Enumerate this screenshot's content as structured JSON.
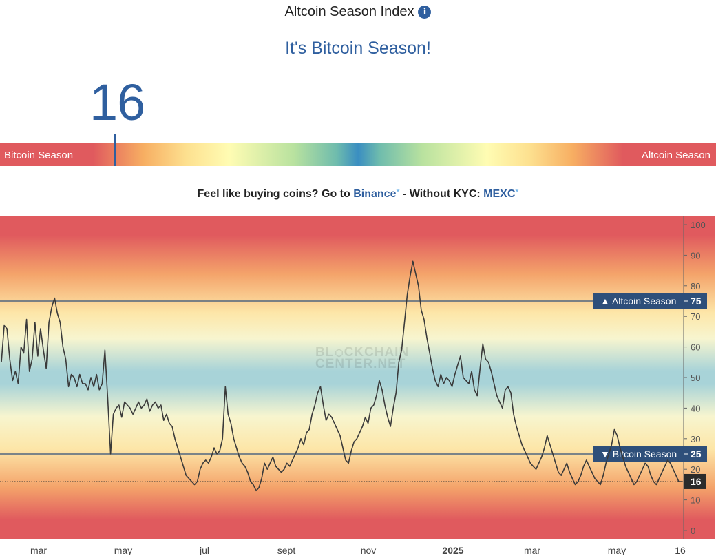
{
  "header": {
    "title": "Altcoin Season Index",
    "info_icon": "info-icon"
  },
  "status": "It's Bitcoin Season!",
  "index_value": "16",
  "gauge": {
    "left_label": "Bitcoin Season",
    "right_label": "Altcoin Season",
    "value": 16
  },
  "promo": {
    "text1": "Feel like buying coins? Go to ",
    "link1": "Binance",
    "star": "*",
    "text2": " - Without KYC: ",
    "link2": "MEXC"
  },
  "chart_data": {
    "type": "line",
    "watermark": [
      "BL",
      "CKCHAIN",
      "CENTER.NET"
    ],
    "ylim": [
      0,
      102
    ],
    "yticks": [
      0,
      10,
      20,
      30,
      40,
      50,
      60,
      70,
      80,
      90,
      100
    ],
    "xtick_labels": [
      "mar",
      "may",
      "jul",
      "sept",
      "nov",
      "2025",
      "mar",
      "may",
      "16"
    ],
    "thresholds": [
      {
        "value": 75,
        "label": "▲ Altcoin Season",
        "value_label": "75"
      },
      {
        "value": 25,
        "label": "▼ Bitcoin Season",
        "value_label": "25"
      }
    ],
    "current": {
      "value": 16,
      "label": "16"
    },
    "values": [
      55,
      67,
      66,
      56,
      49,
      52,
      48,
      60,
      58,
      69,
      52,
      56,
      68,
      57,
      66,
      59,
      53,
      68,
      73,
      76,
      71,
      68,
      60,
      56,
      47,
      51,
      50,
      47,
      51,
      48,
      48,
      46,
      50,
      47,
      51,
      46,
      48,
      59,
      43,
      25,
      38,
      40,
      41,
      37,
      42,
      41,
      40,
      38,
      40,
      42,
      40,
      41,
      43,
      39,
      41,
      42,
      40,
      41,
      36,
      38,
      35,
      34,
      30,
      27,
      24,
      21,
      18,
      17,
      16,
      15,
      16,
      20,
      22,
      23,
      22,
      24,
      27,
      25,
      26,
      30,
      47,
      38,
      35,
      30,
      27,
      24,
      22,
      21,
      19,
      16,
      15,
      13,
      14,
      17,
      22,
      20,
      22,
      24,
      21,
      20,
      19,
      20,
      22,
      21,
      23,
      25,
      27,
      30,
      28,
      32,
      33,
      38,
      41,
      45,
      47,
      41,
      36,
      38,
      37,
      35,
      33,
      31,
      27,
      23,
      22,
      26,
      29,
      30,
      32,
      34,
      37,
      35,
      40,
      41,
      44,
      49,
      46,
      41,
      37,
      34,
      40,
      45,
      55,
      59,
      68,
      77,
      83,
      88,
      84,
      80,
      72,
      69,
      63,
      58,
      53,
      49,
      47,
      51,
      48,
      50,
      49,
      47,
      51,
      54,
      57,
      50,
      49,
      48,
      52,
      46,
      44,
      53,
      61,
      56,
      55,
      52,
      48,
      44,
      42,
      40,
      46,
      47,
      45,
      38,
      34,
      31,
      28,
      26,
      24,
      22,
      21,
      20,
      22,
      24,
      27,
      31,
      28,
      25,
      22,
      19,
      18,
      20,
      22,
      19,
      17,
      15,
      16,
      18,
      21,
      23,
      21,
      19,
      17,
      16,
      15,
      18,
      22,
      25,
      28,
      33,
      31,
      27,
      24,
      21,
      19,
      17,
      15,
      16,
      18,
      20,
      22,
      21,
      18,
      16,
      15,
      17,
      19,
      21,
      23,
      22,
      20,
      18,
      16,
      16
    ]
  }
}
